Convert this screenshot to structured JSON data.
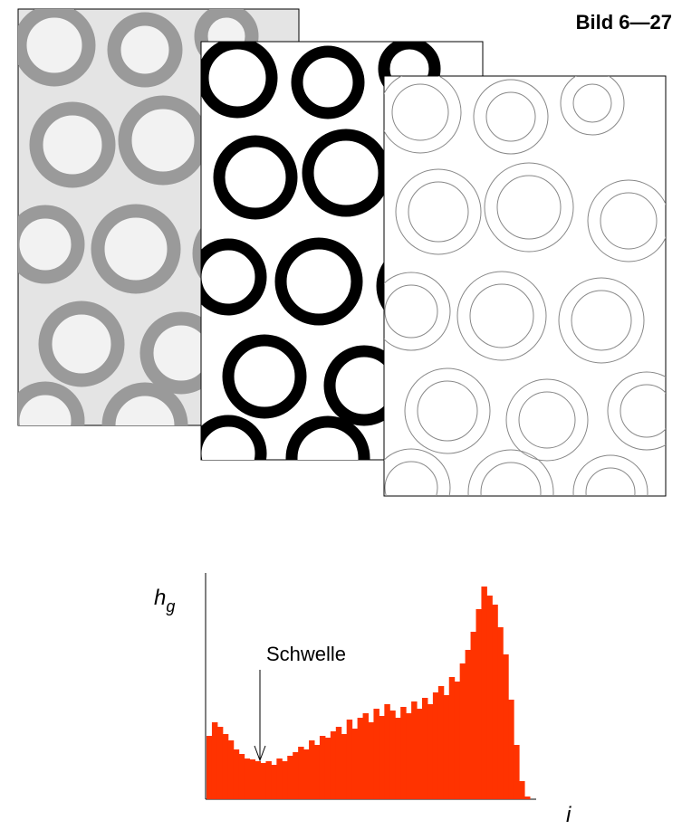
{
  "title": "Bild 6—27",
  "histogram": {
    "y_label": "h",
    "y_label_subscript": "g",
    "annotation": "Schwelle",
    "x_label": "i",
    "color": "#ff3300",
    "ylim": [
      0,
      250
    ],
    "values": [
      70,
      85,
      80,
      72,
      65,
      55,
      50,
      45,
      44,
      42,
      40,
      42,
      38,
      45,
      42,
      48,
      52,
      58,
      55,
      65,
      60,
      70,
      68,
      75,
      80,
      72,
      88,
      78,
      90,
      95,
      85,
      100,
      92,
      105,
      98,
      90,
      102,
      95,
      108,
      100,
      112,
      105,
      118,
      125,
      115,
      135,
      130,
      150,
      165,
      185,
      210,
      235,
      225,
      215,
      190,
      160,
      110,
      60,
      20,
      3
    ]
  }
}
